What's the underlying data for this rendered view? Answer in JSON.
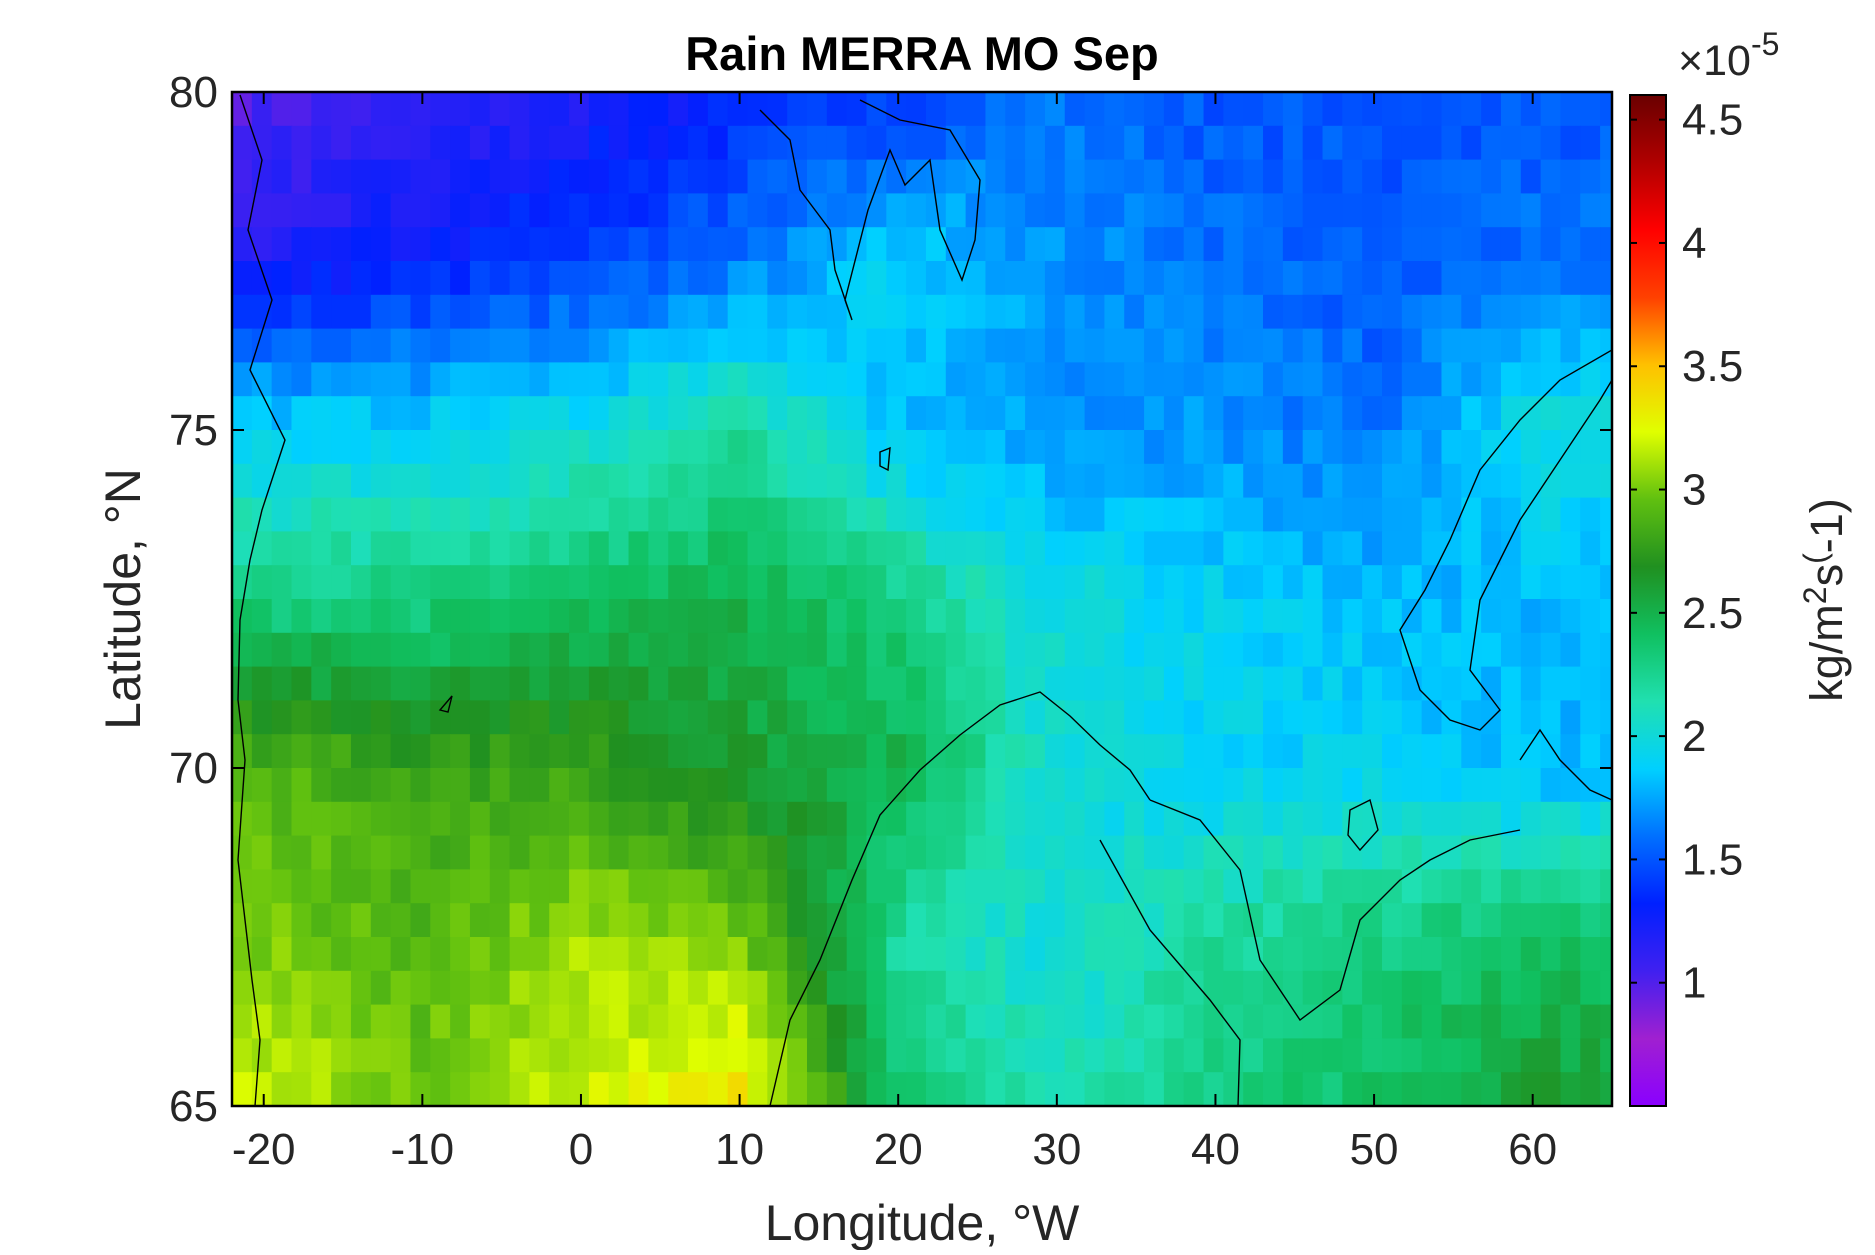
{
  "chart_data": {
    "type": "heatmap",
    "title": "Rain MERRA MO Sep",
    "xlabel": "Longitude, °W",
    "ylabel": "Latitude, °N",
    "xlim": [
      -22,
      65
    ],
    "ylim": [
      65,
      80
    ],
    "xticks": [
      -20,
      -10,
      0,
      10,
      20,
      30,
      40,
      50,
      60
    ],
    "yticks": [
      65,
      70,
      75,
      80
    ],
    "colorbar": {
      "label": "kg/m²s⁽-1)",
      "label_main": "kg/m",
      "label_sup1": "2",
      "label_mid": "s",
      "label_sup2": "(",
      "label_end": "-1)",
      "multiplier_base": "×10",
      "multiplier_exp": "-5",
      "range": [
        0.5,
        4.6
      ],
      "ticks": [
        1,
        1.5,
        2,
        2.5,
        3,
        3.5,
        4,
        4.5
      ],
      "tick_labels": [
        "1",
        "1.5",
        "2",
        "2.5",
        "3",
        "3.5",
        "4",
        "4.5"
      ],
      "colormap": [
        "#8a00ff",
        "#a020d0",
        "#4020f0",
        "#0020ff",
        "#0070ff",
        "#00d0ff",
        "#20e0b0",
        "#10c060",
        "#209020",
        "#60c010",
        "#e0ff00",
        "#ffc000",
        "#ff4000",
        "#ff0000",
        "#b00000",
        "#6a0000"
      ]
    },
    "field_grid": {
      "x": [
        -20,
        -10,
        0,
        10,
        20,
        30,
        40,
        50,
        60
      ],
      "y": [
        80,
        77.5,
        75,
        72.5,
        70,
        67.5,
        65
      ],
      "values": [
        [
          1.0,
          1.1,
          1.2,
          1.3,
          1.4,
          1.6,
          1.5,
          1.5,
          1.5
        ],
        [
          1.2,
          1.3,
          1.4,
          1.6,
          1.9,
          1.7,
          1.6,
          1.5,
          1.6
        ],
        [
          1.9,
          1.9,
          2.0,
          2.2,
          1.8,
          1.7,
          1.7,
          1.6,
          2.0
        ],
        [
          2.3,
          2.3,
          2.4,
          2.5,
          2.3,
          2.0,
          1.9,
          1.8,
          1.8
        ],
        [
          2.9,
          2.8,
          2.8,
          2.6,
          2.5,
          2.0,
          1.9,
          1.9,
          1.8
        ],
        [
          3.0,
          2.9,
          3.1,
          3.0,
          2.2,
          2.0,
          2.2,
          2.3,
          2.4
        ],
        [
          3.2,
          3.0,
          3.2,
          3.4,
          2.4,
          2.1,
          2.3,
          2.4,
          2.6
        ]
      ]
    }
  }
}
